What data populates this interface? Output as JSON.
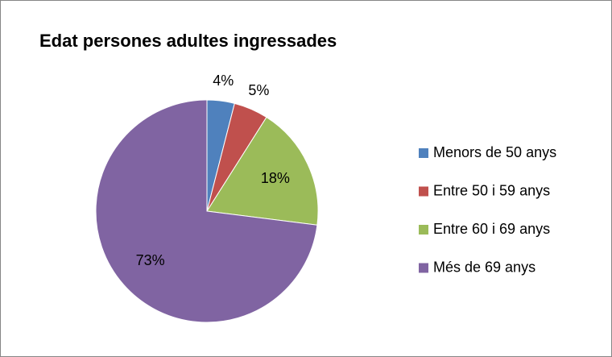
{
  "chart_data": {
    "type": "pie",
    "title": "Edat persones adultes ingressades",
    "categories": [
      "Menors de 50 anys",
      "Entre 50 i 59 anys",
      "Entre 60 i 69 anys",
      "Més de 69 anys"
    ],
    "values": [
      4,
      5,
      18,
      73
    ],
    "value_labels": [
      "4%",
      "5%",
      "18%",
      "73%"
    ],
    "colors": [
      "#4f81bd",
      "#c0504d",
      "#9bbb59",
      "#8064a2"
    ],
    "legend": "right"
  }
}
